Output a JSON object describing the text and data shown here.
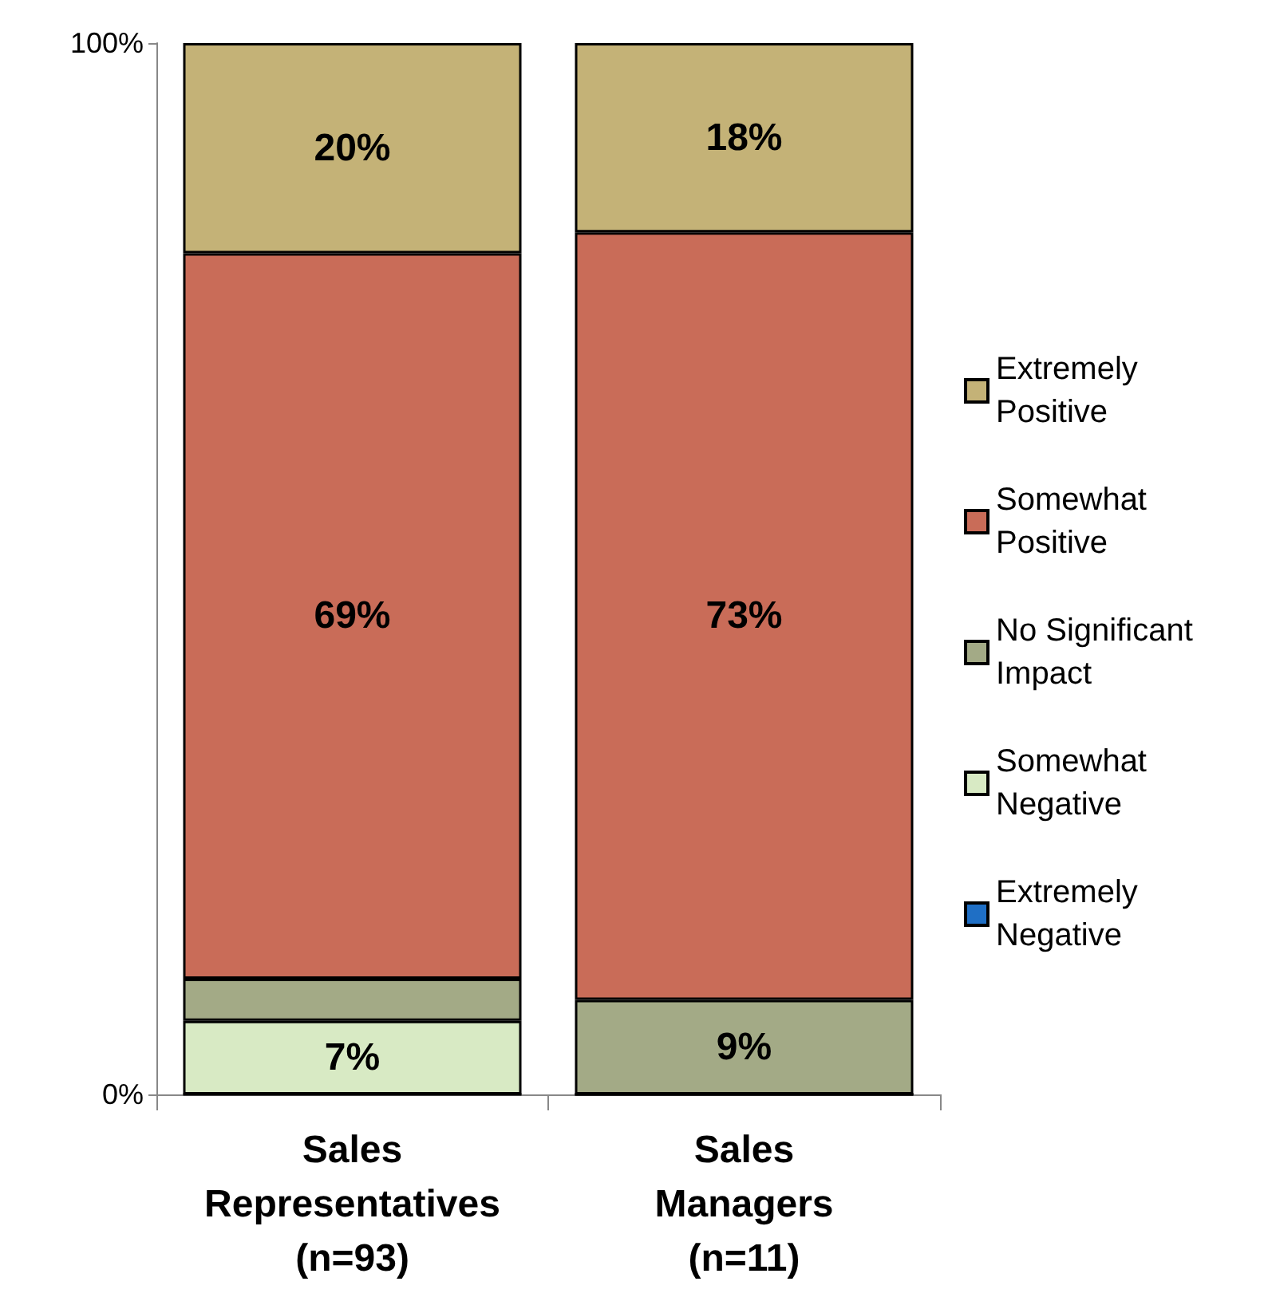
{
  "chart_data": {
    "type": "bar",
    "stacked": true,
    "categories": [
      "Sales\nRepresentatives\n(n=93)",
      "Sales\nManagers\n(n=11)"
    ],
    "series": [
      {
        "name": "Extremely Negative",
        "color": "#1f6fc5",
        "values": [
          0,
          0
        ],
        "value_labels": [
          null,
          null
        ]
      },
      {
        "name": "Somewhat Negative",
        "color": "#d8eac4",
        "values": [
          7,
          0
        ],
        "value_labels": [
          "7%",
          null
        ]
      },
      {
        "name": "No Significant Impact",
        "color": "#a3aa86",
        "values": [
          4,
          9
        ],
        "value_labels": [
          null,
          "9%"
        ]
      },
      {
        "name": "Somewhat Positive",
        "color": "#c96c58",
        "values": [
          69,
          73
        ],
        "value_labels": [
          "69%",
          "73%"
        ]
      },
      {
        "name": "Extremely Positive",
        "color": "#c4b277",
        "values": [
          20,
          18
        ],
        "value_labels": [
          "20%",
          "18%"
        ]
      }
    ],
    "ylim": [
      0,
      100
    ],
    "yticks": [
      {
        "value": 0,
        "label": "0%"
      },
      {
        "value": 100,
        "label": "100%"
      }
    ],
    "grid": false,
    "legend": "right"
  }
}
